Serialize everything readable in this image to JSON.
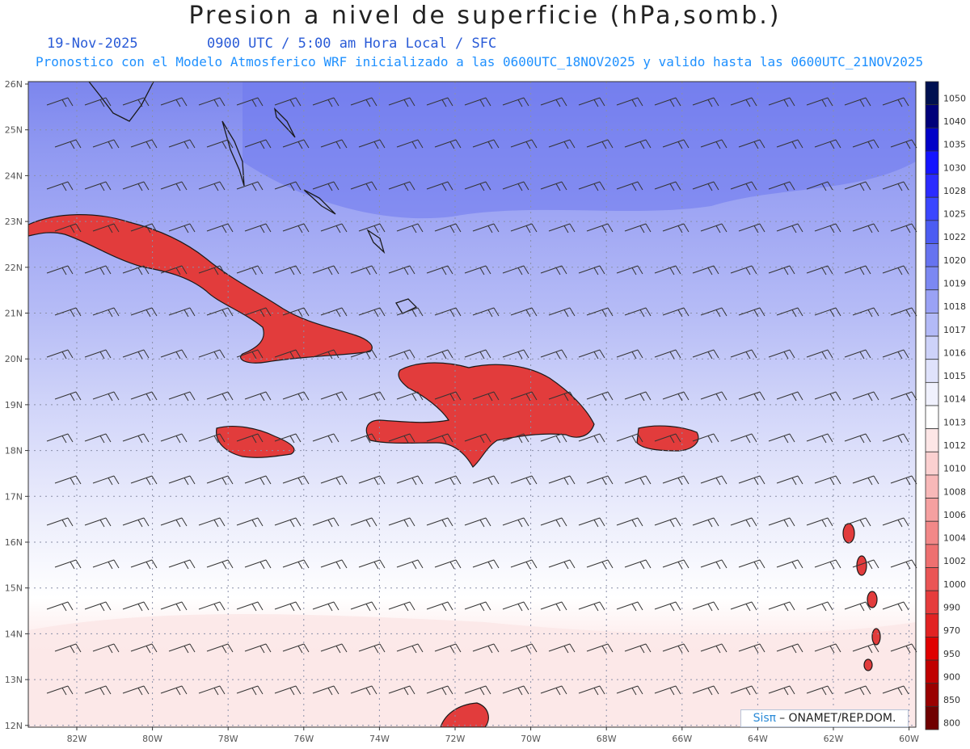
{
  "title": "Presion a nivel de superficie (hPa,somb.)",
  "date": "19-Nov-2025",
  "valid_time": "0900 UTC / 5:00 am Hora Local / SFC",
  "forecast_note": "Pronostico con el Modelo Atmosferico WRF inicializado a las 0600UTC_18NOV2025 y valido hasta las  0600UTC_21NOV2025",
  "credit": {
    "brand": "Sisπ",
    "text": "– ONAMET/REP.DOM."
  },
  "lat_labels": [
    "26N",
    "25N",
    "24N",
    "23N",
    "22N",
    "21N",
    "20N",
    "19N",
    "18N",
    "17N",
    "16N",
    "15N",
    "14N",
    "13N",
    "12N"
  ],
  "lon_labels": [
    "82W",
    "80W",
    "78W",
    "76W",
    "74W",
    "72W",
    "70W",
    "68W",
    "66W",
    "64W",
    "62W",
    "60W"
  ],
  "legend": {
    "levels": [
      "1050",
      "1040",
      "1035",
      "1030",
      "1028",
      "1025",
      "1022",
      "1020",
      "1019",
      "1018",
      "1017",
      "1016",
      "1015",
      "1014",
      "1013",
      "1012",
      "1010",
      "1008",
      "1006",
      "1004",
      "1002",
      "1000",
      "990",
      "970",
      "950",
      "900",
      "850",
      "800"
    ],
    "colors": [
      "#001050",
      "#00007a",
      "#0000c8",
      "#1414ff",
      "#2b2bff",
      "#3a46ff",
      "#4c5cf2",
      "#6673f0",
      "#7c88f2",
      "#9aa2f5",
      "#b3baf7",
      "#cdd2f9",
      "#dfe2fb",
      "#f0f1fd",
      "#ffffff",
      "#fde6e6",
      "#fbd0d0",
      "#f8b8b8",
      "#f5a0a0",
      "#f28888",
      "#ee7070",
      "#ea5555",
      "#e63c3c",
      "#e22222",
      "#e00000",
      "#c00000",
      "#9a0000",
      "#700000"
    ]
  }
}
